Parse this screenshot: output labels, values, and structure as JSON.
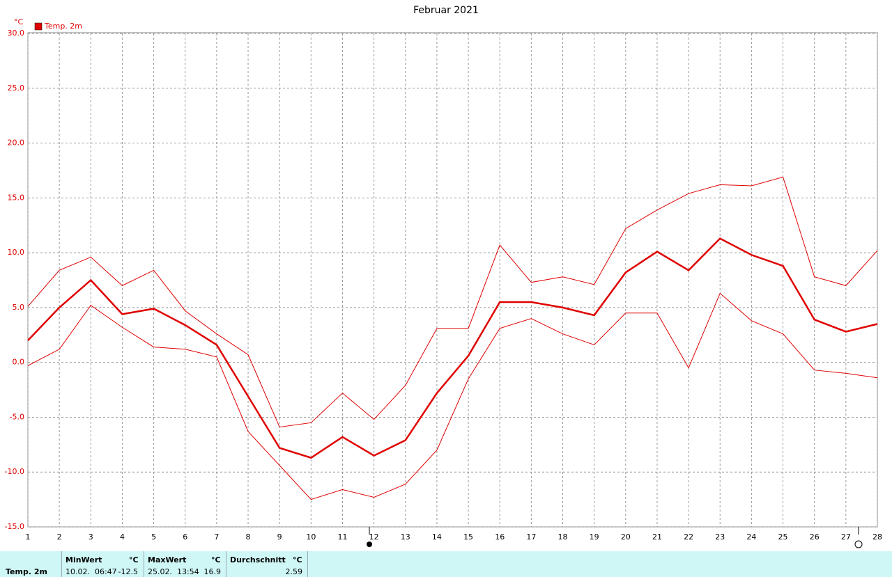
{
  "chart_data": {
    "type": "line",
    "title": "Februar 2021",
    "y_unit": "°C",
    "x": [
      1,
      2,
      3,
      4,
      5,
      6,
      7,
      8,
      9,
      10,
      11,
      12,
      13,
      14,
      15,
      16,
      17,
      18,
      19,
      20,
      21,
      22,
      23,
      24,
      25,
      26,
      27,
      28
    ],
    "xlim": [
      1,
      28
    ],
    "xticks": [
      1,
      2,
      3,
      4,
      5,
      6,
      7,
      8,
      9,
      10,
      11,
      12,
      13,
      14,
      15,
      16,
      17,
      18,
      19,
      20,
      21,
      22,
      23,
      24,
      25,
      26,
      27,
      28
    ],
    "ylim": [
      -15,
      30
    ],
    "yticks": [
      {
        "value": -15,
        "label": "-15.0"
      },
      {
        "value": -10,
        "label": "-10.0"
      },
      {
        "value": -5,
        "label": "-5.0"
      },
      {
        "value": 0,
        "label": "0.0"
      },
      {
        "value": 5,
        "label": "5.0"
      },
      {
        "value": 10,
        "label": "10.0"
      },
      {
        "value": 15,
        "label": "15.0"
      },
      {
        "value": 20,
        "label": "20.0"
      },
      {
        "value": 25,
        "label": "25.0"
      },
      {
        "value": 30,
        "label": "30.0"
      }
    ],
    "grid": true,
    "legend": "top-left",
    "series": [
      {
        "name": "Temp. 2m",
        "color": "#e00000",
        "values": [
          2.0,
          5.0,
          7.5,
          4.4,
          4.9,
          3.4,
          1.6,
          -3.1,
          -7.8,
          -8.7,
          -6.8,
          -8.5,
          -7.1,
          -2.8,
          0.6,
          5.5,
          5.5,
          5.0,
          4.3,
          8.2,
          10.1,
          8.4,
          11.3,
          9.8,
          8.8,
          3.9,
          2.8,
          3.5
        ],
        "high": [
          5.1,
          8.4,
          9.6,
          7.0,
          8.4,
          4.7,
          2.6,
          0.7,
          -5.9,
          -5.5,
          -2.8,
          -5.2,
          -2.1,
          3.1,
          3.1,
          10.7,
          7.3,
          7.8,
          7.1,
          12.2,
          13.9,
          15.4,
          16.2,
          16.1,
          16.9,
          7.8,
          7.0,
          10.2
        ],
        "low": [
          -0.3,
          1.2,
          5.2,
          3.2,
          1.4,
          1.2,
          0.5,
          -6.3,
          -9.4,
          -12.5,
          -11.6,
          -12.3,
          -11.1,
          -8.0,
          -1.5,
          3.1,
          4.0,
          2.6,
          1.6,
          4.5,
          4.5,
          -0.5,
          6.3,
          3.8,
          2.6,
          -0.7,
          -1.0,
          -1.4
        ]
      }
    ]
  },
  "stats": {
    "label": "Temp. 2m",
    "columns": [
      {
        "header": "MinWert",
        "unit": "°C",
        "date": "10.02.  06:47",
        "value": -12.5
      },
      {
        "header": "MaxWert",
        "unit": "°C",
        "date": "25.02.  13:54",
        "value": 16.9
      },
      {
        "header": "Durchschnitt",
        "unit": "°C",
        "value": 2.59
      }
    ]
  }
}
